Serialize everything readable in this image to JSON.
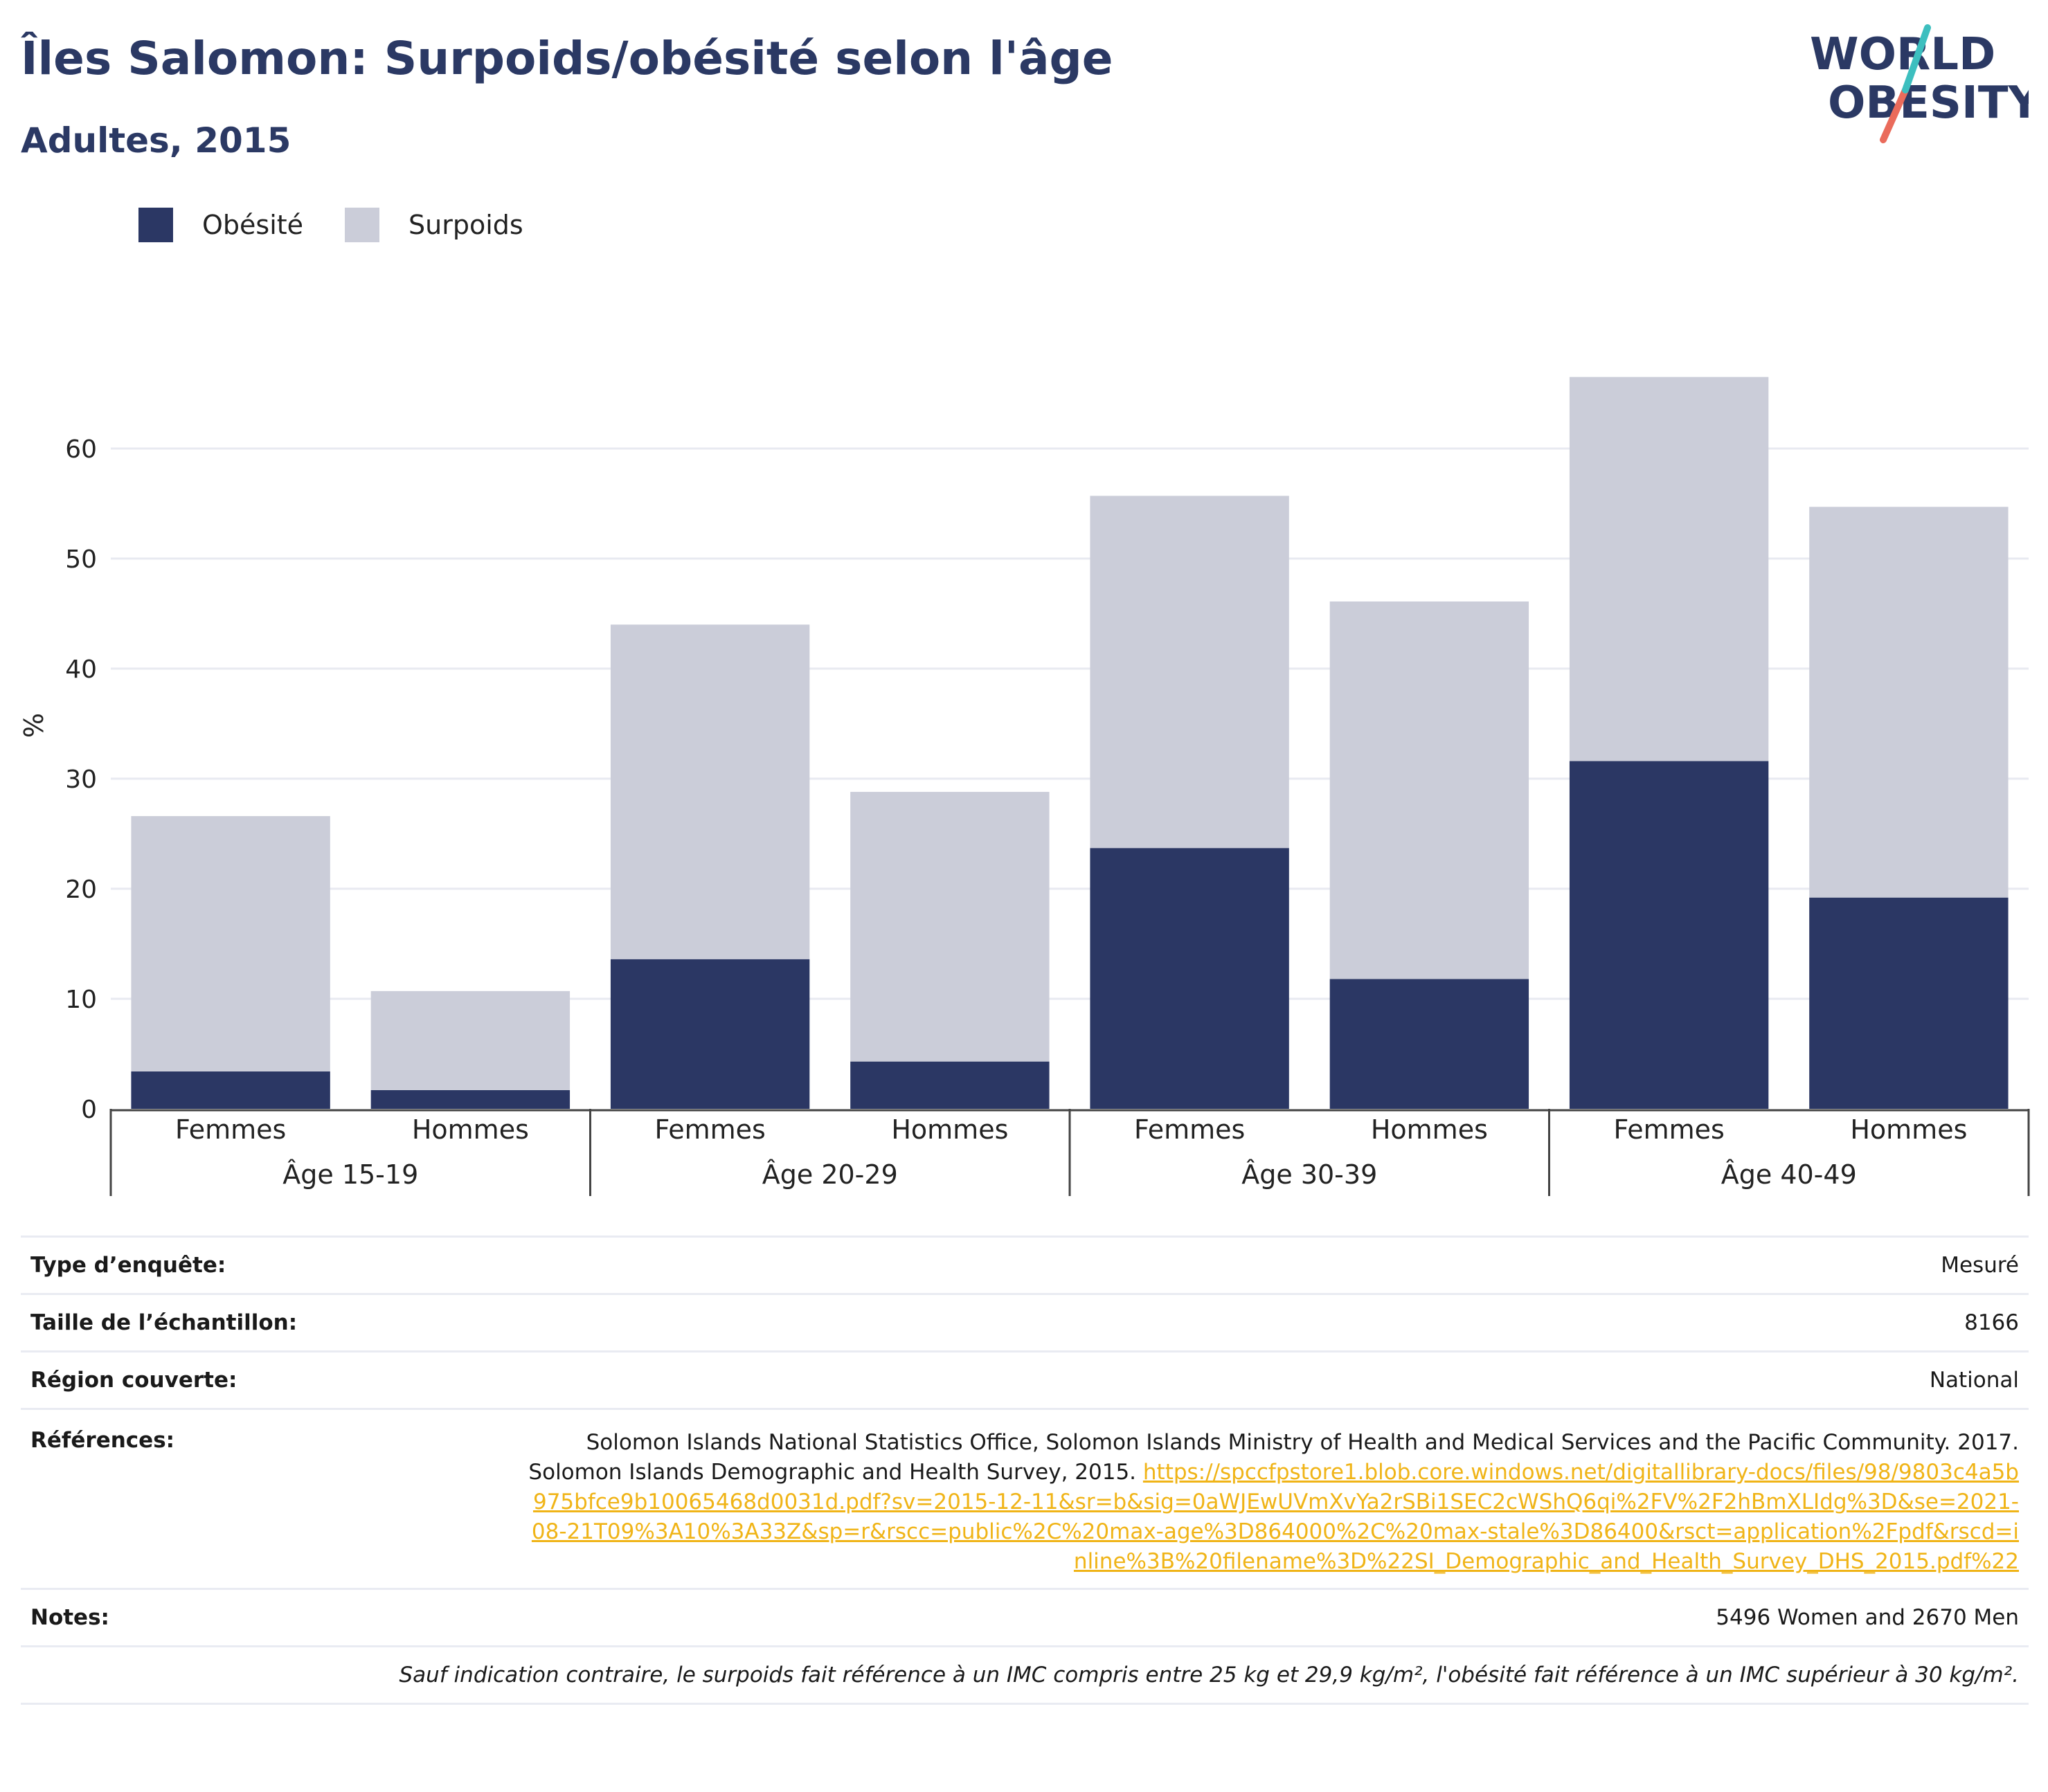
{
  "header": {
    "title": "Îles Salomon: Surpoids/obésité selon l'âge",
    "subtitle": "Adultes, 2015"
  },
  "logo": {
    "line1": "WORLD",
    "line2": "OBESITY"
  },
  "colors": {
    "obesity": "#2b3764",
    "overweight": "#cbcdd9",
    "title": "#2b3964",
    "link": "#f0b417",
    "accent_teal": "#3dbfbf",
    "accent_coral": "#ea6b5b"
  },
  "chart_data": {
    "type": "bar",
    "stacked": true,
    "ylabel": "%",
    "ylim": [
      0,
      70
    ],
    "yticks": [
      0,
      10,
      20,
      30,
      40,
      50,
      60
    ],
    "grid": true,
    "legend_position": "top-left",
    "groups": [
      "Âge 15-19",
      "Âge 20-29",
      "Âge 30-39",
      "Âge 40-49"
    ],
    "categories": [
      "Femmes",
      "Hommes",
      "Femmes",
      "Hommes",
      "Femmes",
      "Hommes",
      "Femmes",
      "Hommes"
    ],
    "series": [
      {
        "name": "Obésité",
        "values": [
          3.4,
          1.7,
          13.6,
          4.3,
          23.7,
          11.8,
          31.6,
          19.2
        ]
      },
      {
        "name": "Surpoids",
        "values": [
          23.2,
          9.0,
          30.4,
          24.5,
          32.0,
          34.3,
          34.9,
          35.5
        ]
      }
    ]
  },
  "info": {
    "survey_type_label": "Type d’enquête:",
    "survey_type_value": "Mesuré",
    "sample_size_label": "Taille de l’échantillon:",
    "sample_size_value": "8166",
    "region_label": "Région couverte:",
    "region_value": "National",
    "references_label": "Références:",
    "references_text": "Solomon Islands National Statistics Office, Solomon Islands Ministry of Health and Medical Services and the Pacific Community. 2017. Solomon Islands Demographic and Health Survey, 2015.",
    "references_link": "https://spccfpstore1.blob.core.windows.net/digitallibrary-docs/files/98/9803c4a5b975bfce9b10065468d0031d.pdf?sv=2015-12-11&sr=b&sig=0aWJEwUVmXvYa2rSBi1SEC2cWShQ6qi%2FV%2F2hBmXLIdg%3D&se=2021-08-21T09%3A10%3A33Z&sp=r&rscc=public%2C%20max-age%3D864000%2C%20max-stale%3D86400&rsct=application%2Fpdf&rscd=inline%3B%20filename%3D%22SI_Demographic_and_Health_Survey_DHS_2015.pdf%22",
    "notes_label": "Notes:",
    "notes_value": "5496 Women and 2670 Men",
    "footnote": "Sauf indication contraire, le surpoids fait référence à un IMC compris entre 25 kg et 29,9 kg/m², l'obésité fait référence à un IMC supérieur à 30 kg/m²."
  }
}
